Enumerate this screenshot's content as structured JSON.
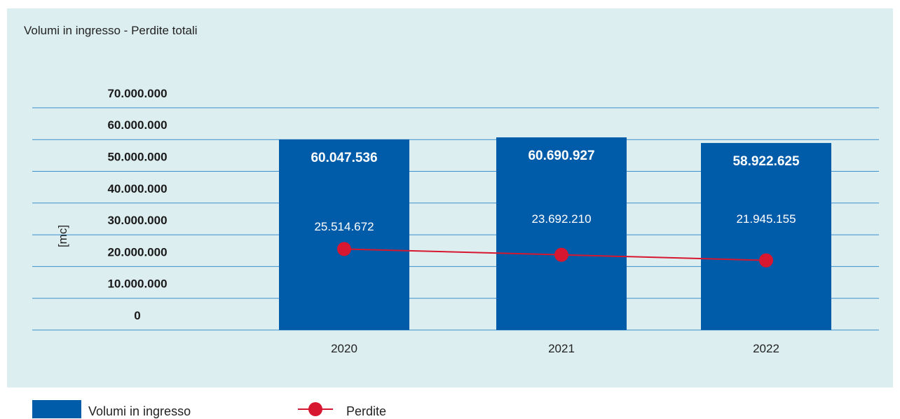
{
  "chart_data": {
    "type": "bar",
    "title": "Volumi in ingresso - Perdite totali",
    "ylabel": "[mc]",
    "categories": [
      "2020",
      "2021",
      "2022"
    ],
    "yticks": [
      "0",
      "10.000.000",
      "20.000.000",
      "30.000.000",
      "40.000.000",
      "50.000.000",
      "60.000.000",
      "70.000.000"
    ],
    "ylim": [
      0,
      70000000
    ],
    "grid": true,
    "legend_position": "bottom",
    "series": [
      {
        "name": "Volumi in ingresso",
        "type": "bar",
        "color": "#005ca9",
        "values": [
          60047536,
          60690927,
          58922625
        ],
        "labels": [
          "60.047.536",
          "60.690.927",
          "58.922.625"
        ]
      },
      {
        "name": "Perdite",
        "type": "line",
        "color": "#d7172f",
        "values": [
          25514672,
          23692210,
          21945155
        ],
        "labels": [
          "25.514.672",
          "23.692.210",
          "21.945.155"
        ]
      }
    ]
  }
}
